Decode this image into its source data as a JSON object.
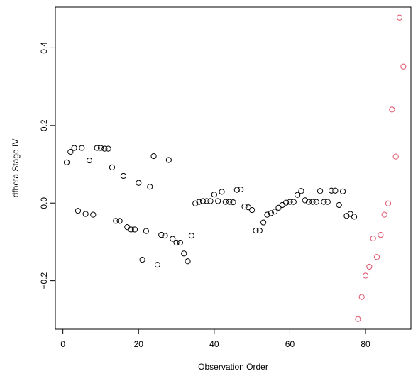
{
  "chart_data": {
    "type": "scatter",
    "title": "",
    "xlabel": "Observation Order",
    "ylabel": "dfbeta Stage IV",
    "xlim": [
      -2,
      92
    ],
    "ylim": [
      -0.325,
      0.505
    ],
    "x_ticks": [
      0,
      20,
      40,
      60,
      80
    ],
    "x_tick_labels": [
      "0",
      "20",
      "40",
      "60",
      "80"
    ],
    "y_ticks": [
      -0.2,
      0.0,
      0.2,
      0.4
    ],
    "y_tick_labels": [
      "−0.2",
      "0.0",
      "0.2",
      "0.4"
    ],
    "grid": false,
    "legend": "none",
    "marker": "open-circle",
    "colors": {
      "black": "#000000",
      "red": "#DF536B"
    },
    "series": [
      {
        "color": "#000000",
        "x": [
          1,
          2,
          3,
          4,
          5,
          6,
          7,
          8,
          9,
          10,
          11,
          12,
          13,
          14,
          15,
          16,
          17,
          18,
          19,
          20,
          21,
          22,
          23,
          24,
          25,
          26,
          27,
          28,
          29,
          30,
          31,
          32,
          33,
          34,
          35,
          36,
          37,
          38,
          39,
          40,
          41,
          42,
          43,
          44,
          45,
          46,
          47,
          48,
          49,
          50,
          51,
          52,
          53,
          54,
          55,
          56,
          57,
          58,
          59,
          60,
          61,
          62,
          63,
          64,
          65,
          66,
          67,
          68,
          69,
          70,
          71,
          72,
          73,
          74,
          75,
          76,
          77
        ],
        "y": [
          0.105,
          0.132,
          0.142,
          -0.02,
          0.142,
          -0.028,
          0.11,
          -0.03,
          0.142,
          0.142,
          0.14,
          0.14,
          0.092,
          -0.046,
          -0.046,
          0.07,
          -0.062,
          -0.068,
          -0.068,
          0.052,
          -0.146,
          -0.072,
          0.042,
          0.121,
          -0.159,
          -0.082,
          -0.084,
          0.111,
          -0.092,
          -0.102,
          -0.102,
          -0.13,
          -0.15,
          -0.084,
          -0.001,
          0.003,
          0.005,
          0.005,
          0.005,
          0.022,
          0.005,
          0.029,
          0.003,
          0.003,
          0.002,
          0.034,
          0.035,
          -0.009,
          -0.011,
          -0.018,
          -0.071,
          -0.071,
          -0.05,
          -0.03,
          -0.026,
          -0.022,
          -0.012,
          -0.005,
          0.001,
          0.003,
          0.003,
          0.021,
          0.031,
          0.007,
          0.003,
          0.003,
          0.003,
          0.031,
          0.003,
          0.003,
          0.032,
          0.032,
          -0.005,
          0.03,
          -0.033,
          -0.028,
          -0.035
        ]
      },
      {
        "color": "#DF536B",
        "x": [
          78,
          79,
          80,
          81,
          82,
          83,
          84,
          85,
          86,
          87,
          88,
          89,
          90
        ],
        "y": [
          -0.299,
          -0.242,
          -0.187,
          -0.164,
          -0.091,
          -0.139,
          -0.082,
          -0.03,
          -0.001,
          0.241,
          0.12,
          0.478,
          0.352
        ]
      }
    ]
  }
}
